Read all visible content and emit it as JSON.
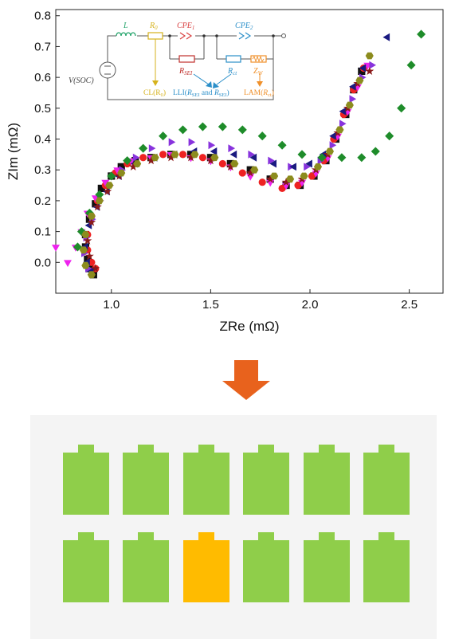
{
  "chart_data": {
    "type": "scatter",
    "xlabel": "ZRe (mΩ)",
    "ylabel": "ZIm (mΩ)",
    "xlim": [
      0.72,
      2.67
    ],
    "ylim": [
      -0.1,
      0.82
    ],
    "xticks": [
      "1.0",
      "1.5",
      "2.0",
      "2.5"
    ],
    "yticks": [
      "0.0",
      "0.1",
      "0.2",
      "0.3",
      "0.4",
      "0.5",
      "0.6",
      "0.7",
      "0.8"
    ],
    "grid": false,
    "series": [
      {
        "marker": "square",
        "color": "#111111",
        "points": [
          [
            0.91,
            -0.04
          ],
          [
            0.89,
            -0.02
          ],
          [
            0.88,
            0.01
          ],
          [
            0.87,
            0.05
          ],
          [
            0.87,
            0.09
          ],
          [
            0.89,
            0.14
          ],
          [
            0.92,
            0.19
          ],
          [
            0.95,
            0.24
          ],
          [
            1.0,
            0.28
          ],
          [
            1.05,
            0.31
          ],
          [
            1.12,
            0.33
          ],
          [
            1.2,
            0.34
          ],
          [
            1.3,
            0.35
          ],
          [
            1.4,
            0.35
          ],
          [
            1.5,
            0.34
          ],
          [
            1.6,
            0.32
          ],
          [
            1.7,
            0.3
          ],
          [
            1.8,
            0.27
          ],
          [
            1.88,
            0.25
          ],
          [
            1.95,
            0.25
          ],
          [
            2.02,
            0.28
          ],
          [
            2.08,
            0.33
          ],
          [
            2.13,
            0.4
          ],
          [
            2.18,
            0.48
          ],
          [
            2.22,
            0.56
          ],
          [
            2.26,
            0.62
          ]
        ]
      },
      {
        "marker": "circle",
        "color": "#ee2222",
        "points": [
          [
            0.92,
            -0.02
          ],
          [
            0.9,
            0.0
          ],
          [
            0.88,
            0.04
          ],
          [
            0.88,
            0.09
          ],
          [
            0.9,
            0.15
          ],
          [
            0.93,
            0.2
          ],
          [
            0.97,
            0.25
          ],
          [
            1.02,
            0.29
          ],
          [
            1.08,
            0.32
          ],
          [
            1.16,
            0.34
          ],
          [
            1.26,
            0.35
          ],
          [
            1.36,
            0.35
          ],
          [
            1.46,
            0.34
          ],
          [
            1.56,
            0.32
          ],
          [
            1.66,
            0.29
          ],
          [
            1.76,
            0.26
          ],
          [
            1.86,
            0.24
          ],
          [
            1.94,
            0.25
          ],
          [
            2.01,
            0.28
          ],
          [
            2.07,
            0.33
          ],
          [
            2.12,
            0.4
          ],
          [
            2.17,
            0.48
          ],
          [
            2.22,
            0.56
          ],
          [
            2.27,
            0.63
          ]
        ]
      },
      {
        "marker": "triangle-down",
        "color": "#ee22ee",
        "points": [
          [
            0.72,
            0.05
          ],
          [
            0.78,
            0.0
          ],
          [
            0.82,
            0.05
          ],
          [
            0.85,
            0.1
          ],
          [
            0.88,
            0.16
          ],
          [
            0.92,
            0.21
          ],
          [
            0.97,
            0.26
          ],
          [
            1.03,
            0.3
          ],
          [
            1.1,
            0.33
          ],
          [
            1.2,
            0.34
          ],
          [
            1.3,
            0.35
          ],
          [
            1.4,
            0.34
          ],
          [
            1.5,
            0.33
          ],
          [
            1.6,
            0.31
          ],
          [
            1.7,
            0.28
          ],
          [
            1.8,
            0.26
          ],
          [
            1.88,
            0.25
          ],
          [
            1.96,
            0.26
          ],
          [
            2.03,
            0.29
          ],
          [
            2.09,
            0.34
          ],
          [
            2.14,
            0.41
          ],
          [
            2.19,
            0.49
          ],
          [
            2.24,
            0.57
          ],
          [
            2.29,
            0.64
          ]
        ]
      },
      {
        "marker": "triangle-right",
        "color": "#8833dd",
        "points": [
          [
            0.88,
            -0.02
          ],
          [
            0.86,
            0.03
          ],
          [
            0.87,
            0.08
          ],
          [
            0.9,
            0.14
          ],
          [
            0.94,
            0.2
          ],
          [
            0.99,
            0.25
          ],
          [
            1.05,
            0.3
          ],
          [
            1.12,
            0.34
          ],
          [
            1.2,
            0.37
          ],
          [
            1.3,
            0.39
          ],
          [
            1.4,
            0.39
          ],
          [
            1.5,
            0.38
          ],
          [
            1.6,
            0.37
          ],
          [
            1.7,
            0.35
          ],
          [
            1.8,
            0.33
          ],
          [
            1.9,
            0.31
          ],
          [
            1.98,
            0.31
          ],
          [
            2.05,
            0.33
          ],
          [
            2.11,
            0.38
          ],
          [
            2.16,
            0.45
          ],
          [
            2.21,
            0.53
          ],
          [
            2.26,
            0.6
          ],
          [
            2.31,
            0.64
          ]
        ]
      },
      {
        "marker": "triangle-left",
        "color": "#1a1a80",
        "points": [
          [
            0.9,
            -0.03
          ],
          [
            0.88,
            0.0
          ],
          [
            0.87,
            0.05
          ],
          [
            0.89,
            0.12
          ],
          [
            0.93,
            0.18
          ],
          [
            0.98,
            0.23
          ],
          [
            1.04,
            0.28
          ],
          [
            1.12,
            0.32
          ],
          [
            1.22,
            0.34
          ],
          [
            1.32,
            0.35
          ],
          [
            1.42,
            0.36
          ],
          [
            1.52,
            0.36
          ],
          [
            1.62,
            0.35
          ],
          [
            1.72,
            0.34
          ],
          [
            1.82,
            0.32
          ],
          [
            1.92,
            0.31
          ],
          [
            2.0,
            0.32
          ],
          [
            2.07,
            0.35
          ],
          [
            2.12,
            0.41
          ],
          [
            2.17,
            0.49
          ],
          [
            2.22,
            0.57
          ],
          [
            2.27,
            0.63
          ],
          [
            2.39,
            0.73
          ]
        ]
      },
      {
        "marker": "star",
        "color": "#8b1a1a",
        "points": [
          [
            0.92,
            -0.02
          ],
          [
            0.89,
            0.02
          ],
          [
            0.88,
            0.07
          ],
          [
            0.9,
            0.13
          ],
          [
            0.93,
            0.18
          ],
          [
            0.98,
            0.23
          ],
          [
            1.04,
            0.28
          ],
          [
            1.11,
            0.31
          ],
          [
            1.2,
            0.33
          ],
          [
            1.3,
            0.34
          ],
          [
            1.4,
            0.34
          ],
          [
            1.5,
            0.33
          ],
          [
            1.6,
            0.31
          ],
          [
            1.7,
            0.29
          ],
          [
            1.8,
            0.27
          ],
          [
            1.88,
            0.26
          ],
          [
            1.96,
            0.27
          ],
          [
            2.03,
            0.3
          ],
          [
            2.09,
            0.35
          ],
          [
            2.14,
            0.42
          ],
          [
            2.19,
            0.5
          ],
          [
            2.24,
            0.58
          ],
          [
            2.3,
            0.62
          ]
        ]
      },
      {
        "marker": "diamond",
        "color": "#1e8c2a",
        "points": [
          [
            0.83,
            0.05
          ],
          [
            0.85,
            0.1
          ],
          [
            0.89,
            0.16
          ],
          [
            0.94,
            0.22
          ],
          [
            1.0,
            0.28
          ],
          [
            1.08,
            0.33
          ],
          [
            1.16,
            0.37
          ],
          [
            1.26,
            0.41
          ],
          [
            1.36,
            0.43
          ],
          [
            1.46,
            0.44
          ],
          [
            1.56,
            0.44
          ],
          [
            1.66,
            0.43
          ],
          [
            1.76,
            0.41
          ],
          [
            1.86,
            0.38
          ],
          [
            1.96,
            0.35
          ],
          [
            2.06,
            0.34
          ],
          [
            2.16,
            0.34
          ],
          [
            2.26,
            0.34
          ],
          [
            2.33,
            0.36
          ],
          [
            2.4,
            0.41
          ],
          [
            2.46,
            0.5
          ],
          [
            2.51,
            0.64
          ],
          [
            2.56,
            0.74
          ]
        ]
      },
      {
        "marker": "hexagon",
        "color": "#8c8c1e",
        "points": [
          [
            0.9,
            -0.04
          ],
          [
            0.87,
            -0.01
          ],
          [
            0.86,
            0.04
          ],
          [
            0.87,
            0.09
          ],
          [
            0.9,
            0.15
          ],
          [
            0.94,
            0.2
          ],
          [
            0.99,
            0.25
          ],
          [
            1.05,
            0.29
          ],
          [
            1.13,
            0.32
          ],
          [
            1.22,
            0.34
          ],
          [
            1.32,
            0.35
          ],
          [
            1.42,
            0.35
          ],
          [
            1.52,
            0.34
          ],
          [
            1.62,
            0.32
          ],
          [
            1.72,
            0.3
          ],
          [
            1.82,
            0.28
          ],
          [
            1.9,
            0.27
          ],
          [
            1.97,
            0.28
          ],
          [
            2.04,
            0.31
          ],
          [
            2.1,
            0.36
          ],
          [
            2.15,
            0.43
          ],
          [
            2.2,
            0.51
          ],
          [
            2.25,
            0.59
          ],
          [
            2.3,
            0.67
          ]
        ]
      }
    ],
    "inset_circuit": {
      "labels": {
        "source": "V(SOC)",
        "inductor": "L",
        "resistor0": "R",
        "resistor0_sub": "0",
        "cpe1": "CPE",
        "cpe1_sub": "1",
        "cpe2": "CPE",
        "cpe2_sub": "2",
        "rsei": "R",
        "rsei_sub": "SEI",
        "rct": "R",
        "rct_sub": "ct",
        "zw": "Z",
        "zw_sub": "W",
        "cl": "CL(R",
        "cl_sub": "0",
        "cl_end": ")",
        "lli_1": "LLI(",
        "lli_r1": "R",
        "lli_sub1": "SEI",
        "lli_2": " and ",
        "lli_r2": "R",
        "lli_sub2": "SEI",
        "lli_3": ")",
        "lam": "LAM(",
        "lam_r": "R",
        "lam_sub": "ct",
        "lam_end": ")"
      },
      "colors": {
        "inductor": "#22a36a",
        "r0": "#d6b21c",
        "cpe1": "#d94040",
        "rsei": "#c0302c",
        "cpe2": "#2b8fc9",
        "rct": "#2b8fc9",
        "zw": "#f0902a",
        "cl": "#d6b21c",
        "lli": "#2b8fc9",
        "lam": "#f0902a",
        "wire": "#555555"
      }
    }
  },
  "arrow": {
    "color": "#e8621d"
  },
  "battery_panel": {
    "background": "#f4f4f4",
    "rows": [
      [
        "ok",
        "ok",
        "ok",
        "ok",
        "ok",
        "ok"
      ],
      [
        "ok",
        "ok",
        "fault",
        "ok",
        "ok",
        "ok"
      ]
    ],
    "colors": {
      "ok": "#8fce4a",
      "fault": "#ffbb00"
    }
  }
}
